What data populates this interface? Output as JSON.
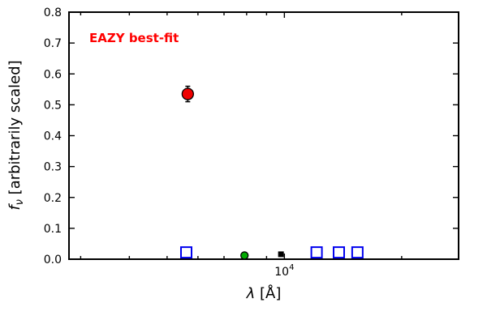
{
  "labels": {
    "xlabel_symbol": "λ",
    "xlabel_rest": " [Å]",
    "ylabel_f": "f",
    "ylabel_sub": "ν",
    "ylabel_rest": " [arbitrarily scaled]"
  },
  "chart_data": {
    "type": "scatter",
    "title": "",
    "annotation": "EAZY best-fit",
    "annotation_color": "#ff0000",
    "xlabel": "λ [Å]",
    "ylabel": "f_ν [arbitrarily scaled]",
    "xscale": "log",
    "xlim": [
      2800,
      28000
    ],
    "ylim": [
      0,
      0.8
    ],
    "yticks": [
      0,
      0.1,
      0.2,
      0.3,
      0.4,
      0.5,
      0.6,
      0.7,
      0.8
    ],
    "xticks_major": [
      {
        "value": 10000,
        "label_base": "10",
        "label_exp": "4"
      }
    ],
    "xticks_minor": [
      3000,
      4000,
      5000,
      6000,
      7000,
      8000,
      9000,
      20000
    ],
    "grid": false,
    "legend": null,
    "series": [
      {
        "name": "template-photometry",
        "marker": "open-square",
        "color": "#0000ee",
        "size": 13,
        "points": [
          {
            "x": 5600,
            "y": 0.022
          },
          {
            "x": 12100,
            "y": 0.022
          },
          {
            "x": 13800,
            "y": 0.022
          },
          {
            "x": 15400,
            "y": 0.022
          }
        ]
      },
      {
        "name": "observed-flux",
        "marker": "filled-circle",
        "color": "#ee0000",
        "edge": "#000000",
        "size": 7,
        "points": [
          {
            "x": 5650,
            "y": 0.535,
            "yerr": 0.025
          }
        ]
      },
      {
        "name": "secondary-point-green",
        "marker": "filled-circle",
        "color": "#00aa00",
        "edge": "#000000",
        "size": 4.5,
        "points": [
          {
            "x": 7900,
            "y": 0.012
          }
        ]
      },
      {
        "name": "flux-point-black",
        "marker": "filled-square",
        "color": "#000000",
        "size": 7,
        "points": [
          {
            "x": 9800,
            "y": 0.016
          }
        ]
      }
    ]
  }
}
